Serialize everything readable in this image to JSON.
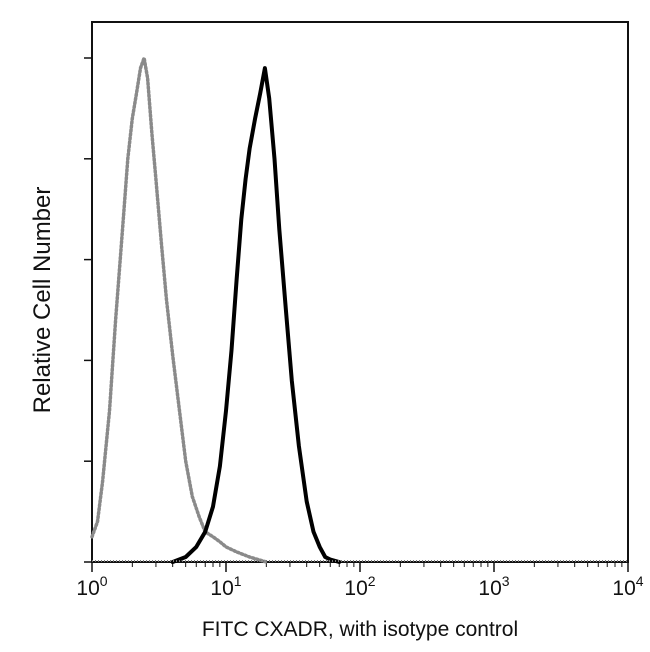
{
  "chart_data": {
    "type": "line",
    "xlabel": "FITC CXADR, with isotype control",
    "ylabel": "Relative Cell Number",
    "x_scale": "log",
    "xlim": [
      1,
      10000
    ],
    "ylim": [
      0,
      1
    ],
    "grid": false,
    "x_ticks": [
      {
        "base": "10",
        "exp": "0",
        "value": 1
      },
      {
        "base": "10",
        "exp": "1",
        "value": 10
      },
      {
        "base": "10",
        "exp": "2",
        "value": 100
      },
      {
        "base": "10",
        "exp": "3",
        "value": 1000
      },
      {
        "base": "10",
        "exp": "4",
        "value": 10000
      }
    ],
    "y_ticks": [
      0,
      0.2,
      0.4,
      0.6,
      0.8,
      1.0
    ],
    "series": [
      {
        "style": "dotted",
        "color": "#8a8a8a",
        "x": [
          1.0,
          1.1,
          1.2,
          1.35,
          1.5,
          1.7,
          1.85,
          2.0,
          2.15,
          2.3,
          2.45,
          2.6,
          2.8,
          3.0,
          3.3,
          3.6,
          4.0,
          4.5,
          5.0,
          5.6,
          6.3,
          7.0,
          8.0,
          9.0,
          10.0,
          12.0,
          15.0,
          20.0
        ],
        "y": [
          0.05,
          0.08,
          0.16,
          0.3,
          0.48,
          0.67,
          0.8,
          0.88,
          0.93,
          0.98,
          1.0,
          0.96,
          0.85,
          0.76,
          0.63,
          0.52,
          0.41,
          0.3,
          0.2,
          0.13,
          0.09,
          0.06,
          0.05,
          0.04,
          0.03,
          0.02,
          0.01,
          0.0
        ]
      },
      {
        "style": "solid",
        "color": "#000000",
        "x": [
          4.0,
          5.0,
          6.0,
          7.0,
          8.0,
          9.0,
          10.0,
          11.0,
          12.0,
          13.0,
          14.0,
          15.0,
          16.5,
          18.0,
          19.5,
          21.0,
          23.0,
          25.0,
          28.0,
          31.0,
          35.0,
          40.0,
          45.0,
          50.0,
          55.0,
          60.0,
          70.0
        ],
        "y": [
          0.0,
          0.01,
          0.03,
          0.06,
          0.11,
          0.19,
          0.3,
          0.42,
          0.56,
          0.68,
          0.76,
          0.82,
          0.88,
          0.93,
          0.98,
          0.92,
          0.8,
          0.66,
          0.5,
          0.36,
          0.23,
          0.12,
          0.06,
          0.03,
          0.01,
          0.005,
          0.0
        ]
      }
    ]
  }
}
